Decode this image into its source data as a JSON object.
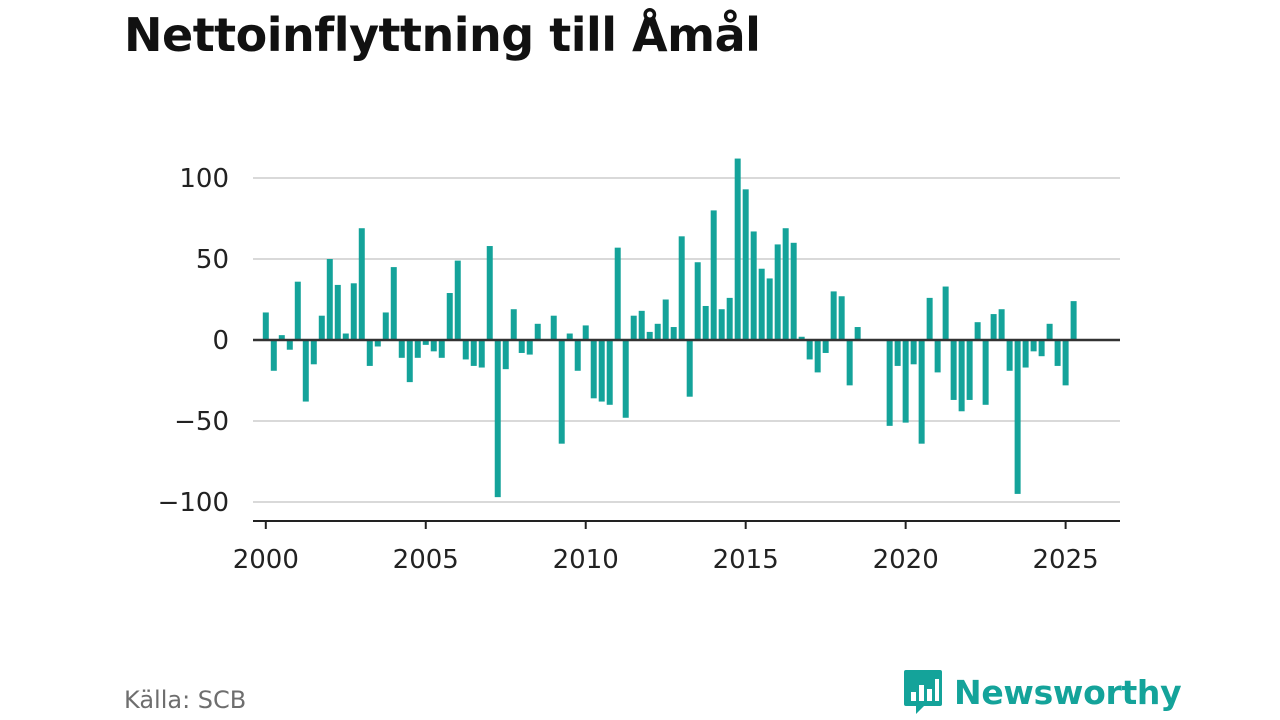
{
  "title": "Nettoinflyttning till Åmål",
  "source": "Källa: SCB",
  "brand": {
    "name": "Newsworthy",
    "icon": "bar-chart-speech-bubble-icon",
    "color": "#14a39a"
  },
  "chart_data": {
    "type": "bar",
    "title": "Nettoinflyttning till Åmål",
    "xlabel": "",
    "ylabel": "",
    "ylim": [
      -110,
      112
    ],
    "xlim": [
      1999.6,
      2026.7
    ],
    "yticks": [
      100,
      50,
      0,
      -50,
      -100
    ],
    "ytick_labels": [
      "100",
      "50",
      "0",
      "−50",
      "−100"
    ],
    "xticks": [
      2000,
      2005,
      2010,
      2015,
      2020,
      2025
    ],
    "xtick_labels": [
      "2000",
      "2005",
      "2010",
      "2015",
      "2020",
      "2025"
    ],
    "grid": true,
    "legend": "none",
    "bar_color": "#14a39a",
    "series": [
      {
        "x": [
          "2000 K1",
          "2000 K2",
          "2000 K3",
          "2000 K4",
          "2001 K1",
          "2001 K2",
          "2001 K3",
          "2001 K4",
          "2002 K1",
          "2002 K2",
          "2002 K3",
          "2002 K4",
          "2003 K1",
          "2003 K2",
          "2003 K3",
          "2003 K4",
          "2004 K1",
          "2004 K2",
          "2004 K3",
          "2004 K4",
          "2005 K1",
          "2005 K2",
          "2005 K3",
          "2005 K4",
          "2006 K1",
          "2006 K2",
          "2006 K3",
          "2006 K4",
          "2007 K1",
          "2007 K2",
          "2007 K3",
          "2007 K4",
          "2008 K1",
          "2008 K2",
          "2008 K3",
          "2008 K4",
          "2009 K1",
          "2009 K2",
          "2009 K3",
          "2009 K4",
          "2010 K1",
          "2010 K2",
          "2010 K3",
          "2010 K4",
          "2011 K1",
          "2011 K2",
          "2011 K3",
          "2011 K4",
          "2012 K1",
          "2012 K2",
          "2012 K3",
          "2012 K4",
          "2013 K1",
          "2013 K2",
          "2013 K3",
          "2013 K4",
          "2014 K1",
          "2014 K2",
          "2014 K3",
          "2014 K4",
          "2015 K1",
          "2015 K2",
          "2015 K3",
          "2015 K4",
          "2016 K1",
          "2016 K2",
          "2016 K3",
          "2016 K4",
          "2017 K1",
          "2017 K2",
          "2017 K3",
          "2017 K4",
          "2018 K1",
          "2018 K2",
          "2018 K3",
          "2018 K4",
          "2019 K1",
          "2019 K2",
          "2019 K3",
          "2019 K4",
          "2020 K1",
          "2020 K2",
          "2020 K3",
          "2020 K4",
          "2021 K1",
          "2021 K2",
          "2021 K3",
          "2021 K4",
          "2022 K1",
          "2022 K2",
          "2022 K3",
          "2022 K4",
          "2023 K1",
          "2023 K2",
          "2023 K3",
          "2023 K4",
          "2024 K1",
          "2024 K2",
          "2024 K3",
          "2024 K4",
          "2025 K1",
          "2025 K2"
        ],
        "values": [
          17,
          -19,
          3,
          -6,
          36,
          -38,
          -15,
          15,
          50,
          34,
          4,
          35,
          69,
          -16,
          -4,
          17,
          45,
          -11,
          -26,
          -11,
          -3,
          -7,
          -11,
          29,
          49,
          -12,
          -16,
          -17,
          58,
          -97,
          -18,
          19,
          -8,
          -9,
          10,
          0,
          15,
          -64,
          4,
          -19,
          9,
          -36,
          -38,
          -40,
          57,
          -48,
          15,
          18,
          5,
          10,
          25,
          8,
          64,
          -35,
          48,
          21,
          80,
          19,
          26,
          112,
          93,
          67,
          44,
          38,
          59,
          69,
          60,
          2,
          -12,
          -20,
          -8,
          30,
          27,
          -28,
          8,
          0,
          0,
          0,
          -53,
          -16,
          -51,
          -15,
          -64,
          26,
          -20,
          33,
          -37,
          -44,
          -37,
          11,
          -40,
          16,
          19,
          -19,
          -95,
          -17,
          -7,
          -10,
          10,
          -16,
          -28,
          24
        ]
      }
    ]
  }
}
